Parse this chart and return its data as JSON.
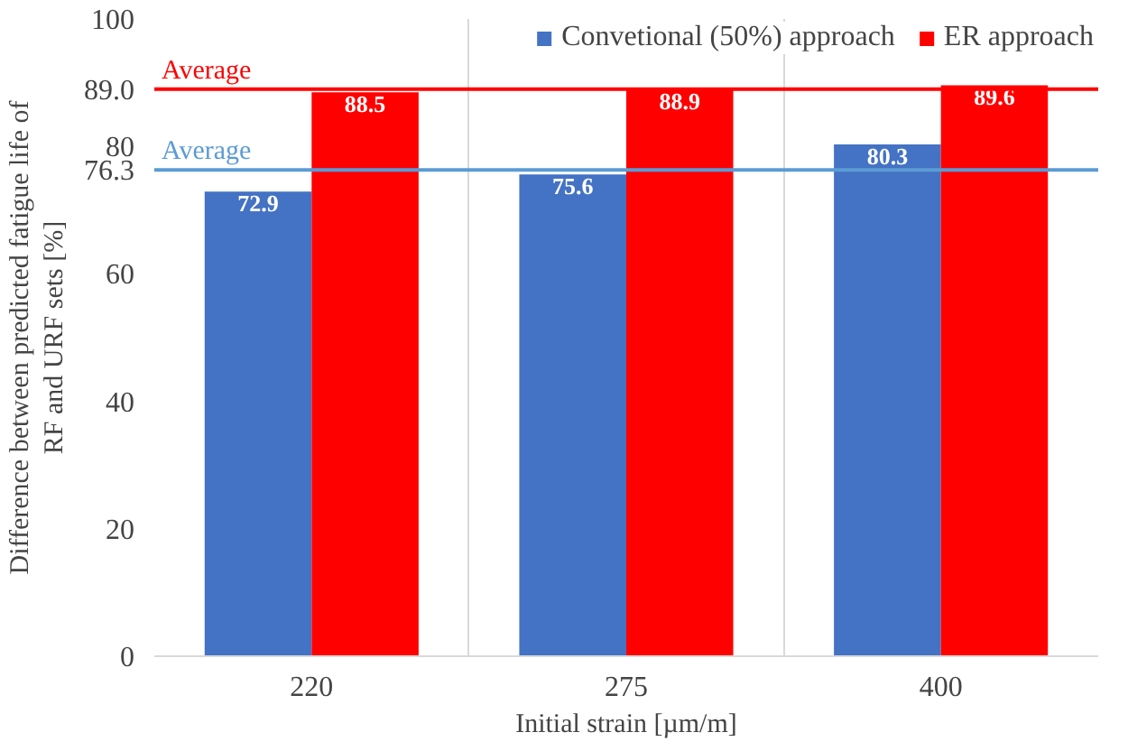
{
  "chart_data": {
    "type": "bar",
    "xlabel": "Initial strain [µm/m]",
    "ylabel": "Difference between predicted fatigue life of RF and URF sets [%]",
    "categories": [
      "220",
      "275",
      "400"
    ],
    "series": [
      {
        "name": "Convetional (50%) approach",
        "color": "#4472c4",
        "values": [
          72.9,
          75.6,
          80.3
        ]
      },
      {
        "name": "ER approach",
        "color": "#ff0000",
        "values": [
          88.5,
          88.9,
          89.6
        ]
      }
    ],
    "ylim": [
      0,
      100
    ],
    "yticks": [
      0,
      20,
      40,
      60,
      {
        "value": 76.3,
        "label": "76.3"
      },
      80,
      {
        "value": 89.0,
        "label": "89.0"
      },
      100
    ],
    "ref_lines": [
      {
        "axis": "y",
        "value": 89.0,
        "label": "Average",
        "color": "#ff0000"
      },
      {
        "axis": "y",
        "value": 76.3,
        "label": "Average",
        "color": "#5b9bd5"
      }
    ],
    "data_labels": true,
    "grid": "x",
    "legend": "top right"
  }
}
